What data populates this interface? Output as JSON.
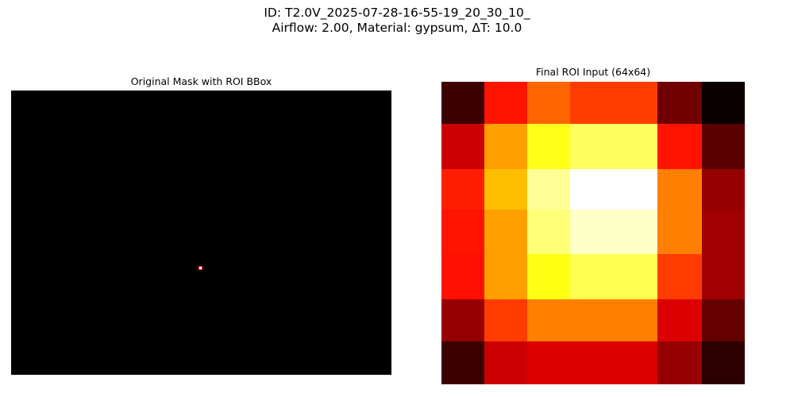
{
  "figure": {
    "suptitle_line1": "ID: T2.0V_2025-07-28-16-55-19_20_30_10_",
    "suptitle_line2": "Airflow: 2.00, Material: gypsum, ΔT: 10.0"
  },
  "left_panel": {
    "title": "Original Mask with ROI BBox",
    "background_color": "#000000",
    "bbox_color": "#ff2020"
  },
  "right_panel": {
    "title": "Final ROI Input (64x64)",
    "colormap": "hot",
    "grid": [
      [
        "#3c0000",
        "#ff1400",
        "#ff6600",
        "#ff3c00",
        "#700000",
        "#0a0000"
      ],
      [
        "#cc0000",
        "#ffa000",
        "#ffff1a",
        "#ffff60",
        "#ff1400",
        "#5a0000"
      ],
      [
        "#ff1e00",
        "#ffbe00",
        "#ffff96",
        "#ffffff",
        "#ff8000",
        "#960000"
      ],
      [
        "#ff1400",
        "#ffa000",
        "#ffff78",
        "#ffffc8",
        "#ff8000",
        "#a00000"
      ],
      [
        "#ff1000",
        "#ffa000",
        "#ffff14",
        "#ffff50",
        "#ff3c00",
        "#a00000"
      ],
      [
        "#960000",
        "#ff3c00",
        "#ff8000",
        "#ff8000",
        "#dc0000",
        "#640000"
      ],
      [
        "#3c0000",
        "#cc0000",
        "#dc0000",
        "#dc0000",
        "#960000",
        "#2c0000"
      ]
    ]
  }
}
